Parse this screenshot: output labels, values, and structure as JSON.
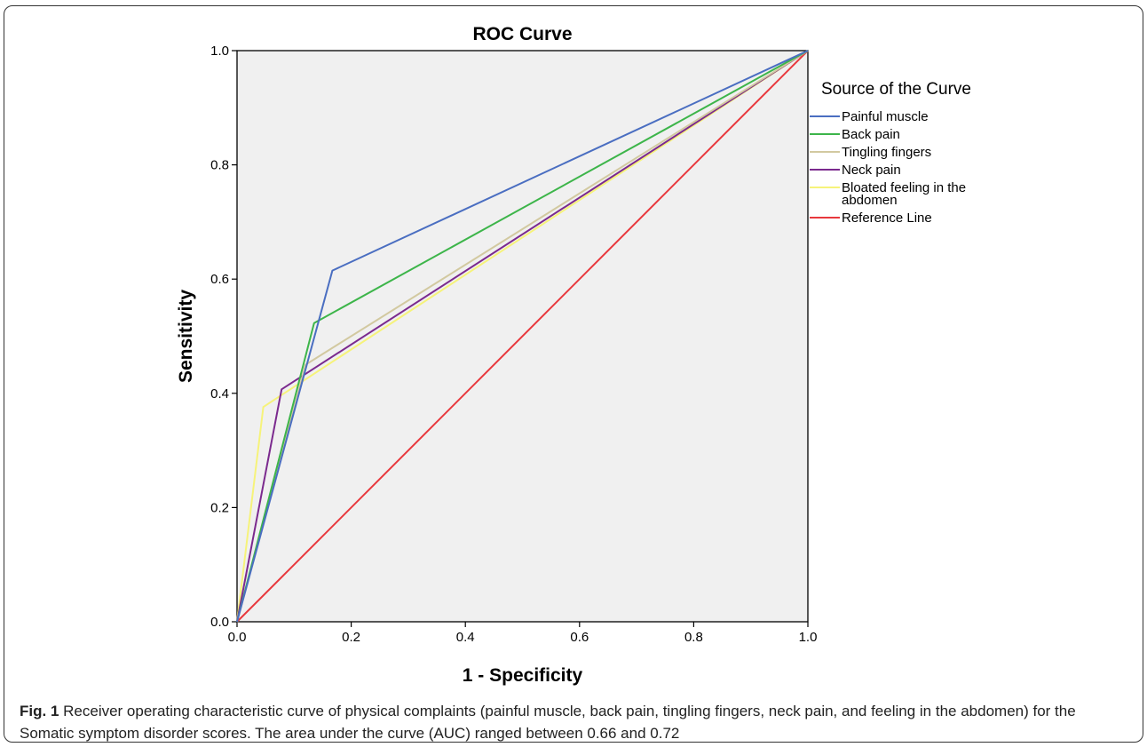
{
  "chart_data": {
    "type": "line",
    "title": "ROC Curve",
    "xlabel": "1 - Specificity",
    "ylabel": "Sensitivity",
    "xlim": [
      0,
      1
    ],
    "ylim": [
      0,
      1
    ],
    "x_ticks": [
      "0.0",
      "0.2",
      "0.4",
      "0.6",
      "0.8",
      "1.0"
    ],
    "y_ticks": [
      "0.0",
      "0.2",
      "0.4",
      "0.6",
      "0.8",
      "1.0"
    ],
    "grid": false,
    "background_color": "#f0f0f0",
    "legend": {
      "title": "Source of the Curve",
      "placement": "right"
    },
    "series": [
      {
        "name": "Painful muscle",
        "color": "#4a6ec1",
        "points": [
          [
            0,
            0
          ],
          [
            0.167,
            0.615
          ],
          [
            1,
            1
          ]
        ]
      },
      {
        "name": "Back pain",
        "color": "#3db54a",
        "points": [
          [
            0,
            0
          ],
          [
            0.135,
            0.523
          ],
          [
            1,
            1
          ]
        ]
      },
      {
        "name": "Tingling fingers",
        "color": "#d2c9a0",
        "points": [
          [
            0,
            0
          ],
          [
            0.12,
            0.45
          ],
          [
            1,
            1
          ]
        ]
      },
      {
        "name": "Neck pain",
        "color": "#7b2a8e",
        "points": [
          [
            0,
            0
          ],
          [
            0.078,
            0.407
          ],
          [
            1,
            1
          ]
        ]
      },
      {
        "name": "Bloated feeling in the abdomen",
        "label_lines": [
          "Bloated feeling in the",
          "abdomen"
        ],
        "color": "#f6f37a",
        "points": [
          [
            0,
            0
          ],
          [
            0.046,
            0.376
          ],
          [
            1,
            1
          ]
        ]
      },
      {
        "name": "Reference Line",
        "color": "#e8383d",
        "points": [
          [
            0,
            0
          ],
          [
            1,
            1
          ]
        ]
      }
    ]
  },
  "caption": {
    "label": "Fig. 1",
    "text": " Receiver operating characteristic curve of physical complaints (painful muscle, back pain, tingling fingers, neck pain, and feeling in the abdomen) for the Somatic symptom disorder scores. The area under the curve (AUC) ranged between 0.66 and 0.72"
  }
}
